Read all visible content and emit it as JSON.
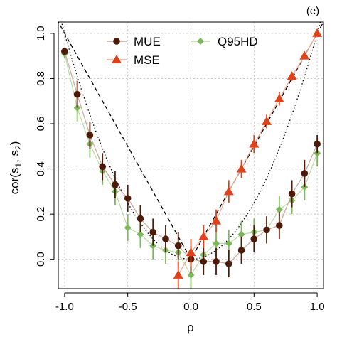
{
  "chart_data": {
    "type": "scatter",
    "panel_label": "(e)",
    "xlabel": "ρ",
    "ylabel": "cor(s1, s2)",
    "ylabel_parts": {
      "base": "cor(s",
      "sub1": "1",
      "mid": ", s",
      "sub2": "2",
      "end": ")"
    },
    "xlim": [
      -1.05,
      1.05
    ],
    "ylim": [
      -0.13,
      1.05
    ],
    "x_ticks": [
      -1.0,
      -0.5,
      0.0,
      0.5,
      1.0
    ],
    "x_tick_labels": [
      "-1.0",
      "-0.5",
      "0.0",
      "0.5",
      "1.0"
    ],
    "y_ticks": [
      0.0,
      0.2,
      0.4,
      0.6,
      0.8,
      1.0
    ],
    "y_tick_labels": [
      "0.0",
      "0.2",
      "0.4",
      "0.6",
      "0.8",
      "1.0"
    ],
    "grid": true,
    "legend_position": "top",
    "series": [
      {
        "name": "MUE",
        "marker": "circle",
        "color": "#4d1a0a",
        "line_color": "#c9a79a",
        "x": [
          -1.0,
          -0.9,
          -0.8,
          -0.7,
          -0.6,
          -0.5,
          -0.4,
          -0.3,
          -0.2,
          -0.1,
          0.0,
          0.1,
          0.2,
          0.3,
          0.4,
          0.5,
          0.6,
          0.7,
          0.8,
          0.9,
          1.0
        ],
        "y": [
          0.92,
          0.73,
          0.55,
          0.41,
          0.33,
          0.27,
          0.18,
          0.12,
          0.09,
          0.06,
          0.0,
          -0.01,
          -0.01,
          -0.02,
          0.04,
          0.09,
          0.13,
          0.15,
          0.29,
          0.38,
          0.51
        ],
        "err": [
          0.01,
          0.06,
          0.06,
          0.06,
          0.06,
          0.06,
          0.06,
          0.06,
          0.06,
          0.06,
          0.06,
          0.06,
          0.06,
          0.06,
          0.06,
          0.06,
          0.06,
          0.06,
          0.06,
          0.06,
          0.04
        ]
      },
      {
        "name": "MSE",
        "marker": "triangle",
        "color": "#e0401a",
        "line_color": "#f0a890",
        "x": [
          -0.1,
          0.0,
          0.1,
          0.2,
          0.3,
          0.4,
          0.5,
          0.6,
          0.7,
          0.8,
          0.9,
          1.0
        ],
        "y": [
          -0.07,
          0.03,
          0.1,
          0.17,
          0.3,
          0.4,
          0.51,
          0.61,
          0.71,
          0.81,
          0.9,
          1.0
        ],
        "err": [
          0.06,
          0.06,
          0.05,
          0.05,
          0.05,
          0.04,
          0.04,
          0.03,
          0.03,
          0.02,
          0.01,
          0.0
        ]
      },
      {
        "name": "Q95HD",
        "marker": "diamond",
        "color": "#7cb85a",
        "line_color": "#b8dca0",
        "x": [
          -1.0,
          -0.9,
          -0.8,
          -0.7,
          -0.6,
          -0.5,
          -0.4,
          -0.3,
          -0.2,
          -0.1,
          0.0,
          0.1,
          0.2,
          0.3,
          0.4,
          0.5,
          0.6,
          0.7,
          0.8,
          0.9,
          1.0
        ],
        "y": [
          0.91,
          0.67,
          0.51,
          0.39,
          0.3,
          0.14,
          0.11,
          0.06,
          0.04,
          0.03,
          -0.07,
          0.02,
          0.07,
          0.07,
          0.11,
          0.12,
          0.13,
          0.22,
          0.26,
          0.32,
          0.47
        ],
        "err": [
          0.02,
          0.06,
          0.06,
          0.06,
          0.06,
          0.06,
          0.06,
          0.06,
          0.06,
          0.06,
          0.06,
          0.06,
          0.06,
          0.06,
          0.06,
          0.06,
          0.06,
          0.06,
          0.06,
          0.06,
          0.06
        ]
      }
    ],
    "reference_curves": [
      {
        "kind": "abs",
        "style": "dashed",
        "label": ""
      },
      {
        "kind": "square",
        "style": "dotted",
        "label": ""
      }
    ]
  },
  "colors": {
    "background": "#ffffff",
    "grid": "#c8c8c8",
    "axis": "#000000"
  }
}
